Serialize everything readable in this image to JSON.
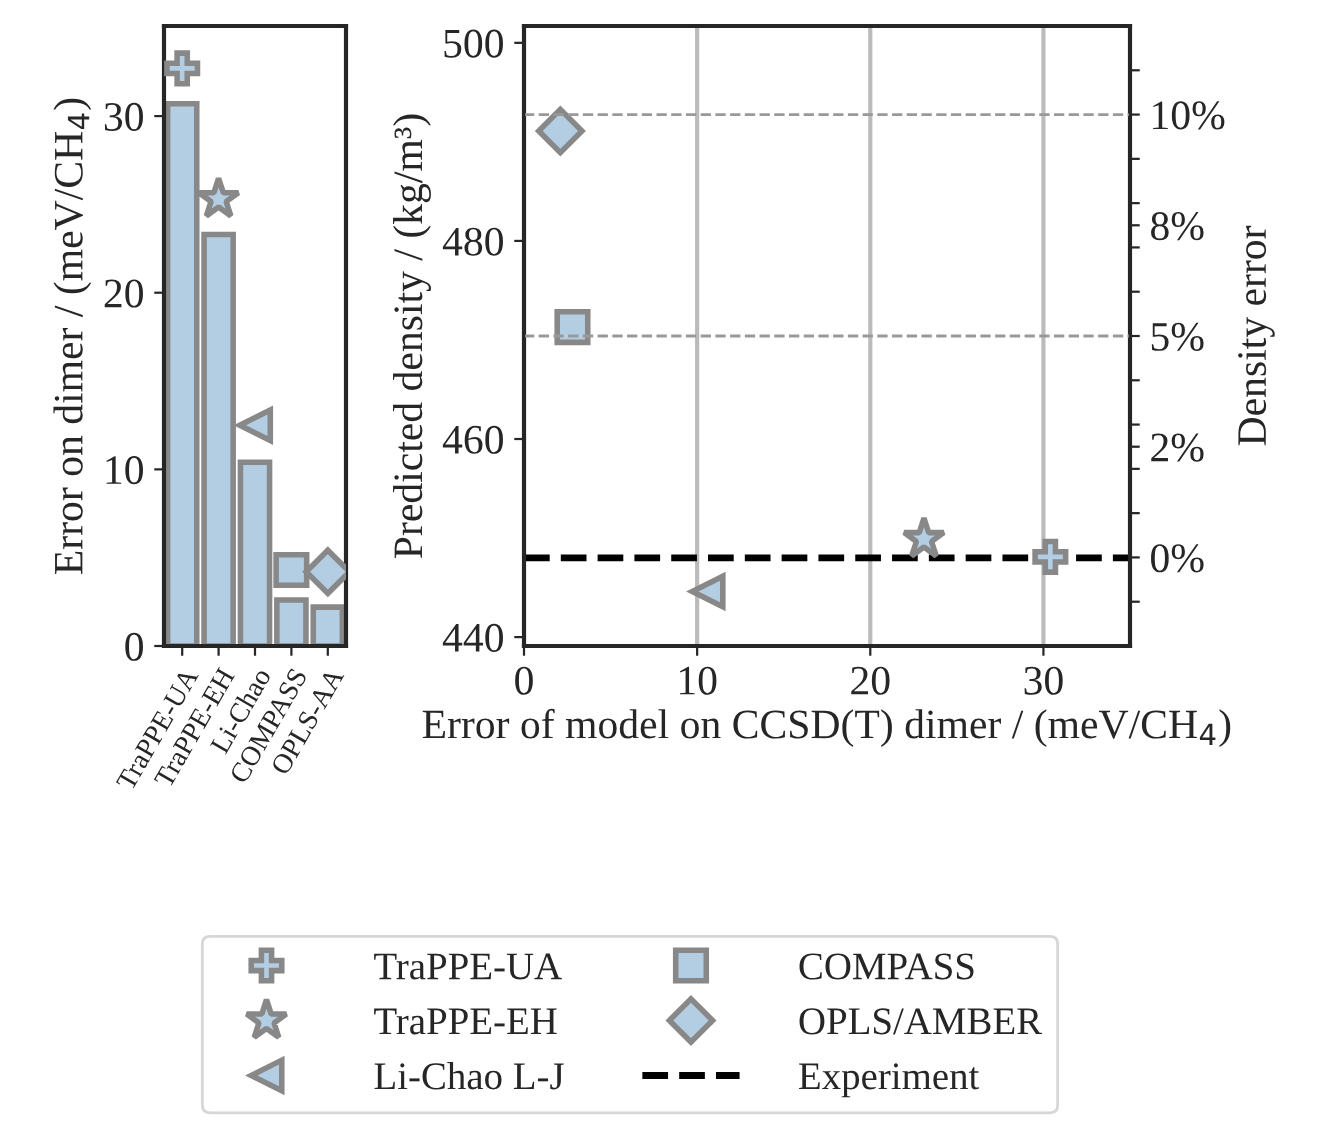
{
  "chart_data": [
    {
      "type": "bar",
      "ylabel": "Error on dimer / (meV/CH$_{4}$)",
      "categories": [
        "TraPPE-UA",
        "TraPPE-EH",
        "Li-Chao",
        "COMPASS",
        "OPLS-AA"
      ],
      "series": [
        {
          "type": "bar",
          "color": "#b3cde3",
          "values": [
            30.7,
            23.3,
            10.4,
            2.6,
            2.2
          ]
        },
        {
          "type": "scatter",
          "marker": "cross",
          "color": "#b3cde3",
          "x": [
            "TraPPE-UA"
          ],
          "values": [
            32.7
          ]
        },
        {
          "type": "scatter",
          "marker": "star",
          "color": "#b3cde3",
          "x": [
            "TraPPE-EH"
          ],
          "values": [
            25.3
          ]
        },
        {
          "type": "scatter",
          "marker": "triangle",
          "color": "#b3cde3",
          "x": [
            "Li-Chao"
          ],
          "values": [
            12.5
          ]
        },
        {
          "type": "scatter",
          "marker": "square",
          "color": "#b3cde3",
          "x": [
            "COMPASS"
          ],
          "values": [
            4.3
          ]
        },
        {
          "type": "scatter",
          "marker": "diamond",
          "color": "#b3cde3",
          "x": [
            "OPLS-AA"
          ],
          "values": [
            4.2
          ]
        }
      ],
      "ylim": [
        0,
        35.1
      ],
      "yticks": [
        0,
        10,
        20,
        30
      ],
      "grid": false,
      "legend": false
    },
    {
      "type": "scatter",
      "xlabel": "Error of model on CCSD(T) dimer / (meV/CH$_{4}$)",
      "ylabel": "Predicted density / (kg/m³)",
      "y2label": "Density error",
      "series": [
        {
          "name": "TraPPE-UA",
          "marker": "cross",
          "color": "#b3cde3",
          "x": [
            30.4
          ],
          "values": [
            448.1
          ]
        },
        {
          "name": "TraPPE-EH",
          "marker": "star",
          "color": "#b3cde3",
          "x": [
            23.1
          ],
          "values": [
            449.9
          ]
        },
        {
          "name": "Li-Chao L-J",
          "marker": "triangle",
          "color": "#b3cde3",
          "x": [
            10.6
          ],
          "values": [
            444.6
          ]
        },
        {
          "name": "COMPASS",
          "marker": "square",
          "color": "#b3cde3",
          "x": [
            2.8
          ],
          "values": [
            471.3
          ]
        },
        {
          "name": "OPLS/AMBER",
          "marker": "diamond",
          "color": "#b3cde3",
          "x": [
            2.1
          ],
          "values": [
            491.1
          ]
        }
      ],
      "ref_lines": [
        {
          "axis": "y",
          "value": 448,
          "label": "Experiment",
          "color": "#000000",
          "line_style": "dashed"
        },
        {
          "axis": "y2",
          "value": 5,
          "label": null,
          "color": "#999999",
          "line_style": "dashed"
        },
        {
          "axis": "y2",
          "value": 10,
          "label": null,
          "color": "#999999",
          "line_style": "dashed"
        }
      ],
      "xlim": [
        0,
        35
      ],
      "xticks": [
        0,
        10,
        20,
        30
      ],
      "ylim": [
        439.1,
        501.7
      ],
      "yticks": [
        440,
        460,
        480,
        500
      ],
      "y2lim": [
        -2,
        12
      ],
      "y2ticks": [
        {
          "value": -1,
          "label": null
        },
        {
          "value": 0,
          "label": "0%"
        },
        {
          "value": 1,
          "label": null
        },
        {
          "value": 2,
          "label": null
        },
        {
          "value": 2.5,
          "label": "2%"
        },
        {
          "value": 3,
          "label": null
        },
        {
          "value": 4,
          "label": null
        },
        {
          "value": 5,
          "label": "5%"
        },
        {
          "value": 6,
          "label": null
        },
        {
          "value": 7,
          "label": null
        },
        {
          "value": 7.5,
          "label": "8%"
        },
        {
          "value": 8,
          "label": null
        },
        {
          "value": 9,
          "label": null
        },
        {
          "value": 10,
          "label": "10%"
        },
        {
          "value": 11,
          "label": null
        }
      ],
      "grid": "x",
      "legend": "bottom"
    }
  ]
}
